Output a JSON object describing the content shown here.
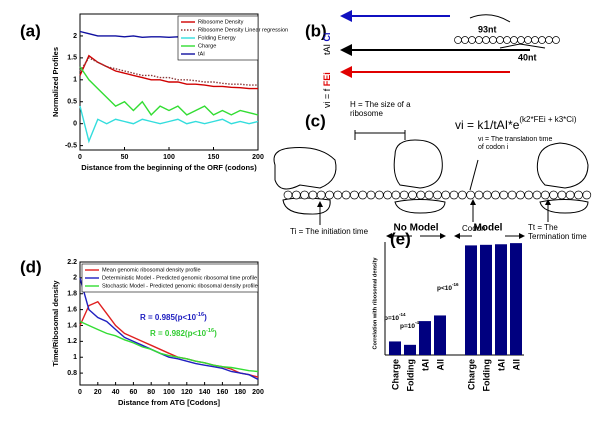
{
  "chart_data": [
    {
      "type": "line",
      "label": "(a)",
      "x_label": "Distance from the beginning of the ORF (codons)",
      "y_label": "Normalized Profiles",
      "x": [
        0,
        10,
        20,
        30,
        40,
        50,
        60,
        70,
        80,
        90,
        100,
        110,
        120,
        130,
        140,
        150,
        160,
        170,
        180,
        190,
        200
      ],
      "xlim": [
        0,
        200
      ],
      "xticks": [
        0,
        50,
        100,
        150,
        200
      ],
      "ylim": [
        -0.6,
        2.5
      ],
      "yticks": [
        -0.5,
        0,
        0.5,
        1,
        1.5,
        2
      ],
      "series": [
        {
          "name": "Ribosome Density",
          "color": "#d00000",
          "values": [
            1.1,
            1.55,
            1.4,
            1.3,
            1.2,
            1.15,
            1.1,
            1.05,
            1.0,
            1.0,
            0.95,
            0.95,
            0.9,
            0.9,
            0.88,
            0.85,
            0.85,
            0.83,
            0.82,
            0.8,
            0.8
          ]
        },
        {
          "name": "Ribosome Density Linear regression",
          "color": "#8b3a3a",
          "style": "dotted",
          "values": [
            1.2,
            1.5,
            1.4,
            1.3,
            1.25,
            1.2,
            1.15,
            1.1,
            1.1,
            1.05,
            1.05,
            1.0,
            1.0,
            0.98,
            0.95,
            0.95,
            0.92,
            0.9,
            0.9,
            0.88,
            0.88
          ]
        },
        {
          "name": "Folding Energy",
          "color": "#33dddd",
          "values": [
            0.4,
            -0.4,
            0.1,
            0.0,
            0.1,
            0.05,
            0.0,
            0.1,
            0.05,
            0.0,
            0.05,
            0.1,
            0.0,
            0.05,
            0.0,
            0.05,
            0.1,
            0.0,
            0.05,
            0.0,
            0.05
          ]
        },
        {
          "name": "Charge",
          "color": "#33dd33",
          "values": [
            1.3,
            1.0,
            0.8,
            0.6,
            0.4,
            0.5,
            0.3,
            0.5,
            0.2,
            0.4,
            0.3,
            0.4,
            0.2,
            0.3,
            0.4,
            0.2,
            0.3,
            0.2,
            0.3,
            0.25,
            0.2
          ]
        },
        {
          "name": "tAI",
          "color": "#1010a0",
          "values": [
            2.1,
            2.05,
            2.0,
            2.0,
            2.0,
            1.98,
            2.0,
            1.97,
            1.98,
            1.98,
            1.97,
            1.98,
            1.96,
            1.97,
            1.97,
            1.95,
            1.96,
            1.96,
            1.95,
            1.96,
            1.95
          ]
        }
      ]
    },
    {
      "type": "line",
      "label": "(d)",
      "x_label": "Distance from ATG [Codons]",
      "y_label": "Time/Ribosomal density",
      "x": [
        0,
        10,
        20,
        30,
        40,
        50,
        60,
        70,
        80,
        90,
        100,
        110,
        120,
        130,
        140,
        150,
        160,
        170,
        180,
        190,
        200
      ],
      "xlim": [
        0,
        200
      ],
      "xticks": [
        0,
        20,
        40,
        60,
        80,
        100,
        120,
        140,
        160,
        180,
        200
      ],
      "ylim": [
        0.65,
        2.2
      ],
      "yticks": [
        0.8,
        1,
        1.2,
        1.4,
        1.6,
        1.8,
        2,
        2.2
      ],
      "series": [
        {
          "name": "Mean genomic ribosomal density profile",
          "color": "#e02020",
          "values": [
            1.4,
            1.65,
            1.7,
            1.55,
            1.4,
            1.3,
            1.25,
            1.2,
            1.15,
            1.1,
            1.05,
            1.0,
            0.98,
            0.95,
            0.93,
            0.9,
            0.88,
            0.85,
            0.8,
            0.78,
            0.75
          ]
        },
        {
          "name": "Deterministic Model - Predicted genomic ribosomal time profile",
          "color": "#2020c0",
          "values": [
            2.0,
            1.6,
            1.5,
            1.45,
            1.35,
            1.25,
            1.2,
            1.15,
            1.1,
            1.05,
            1.0,
            0.98,
            0.95,
            0.92,
            0.9,
            0.88,
            0.86,
            0.82,
            0.8,
            0.78,
            0.72
          ]
        },
        {
          "name": "Stochastic Model - Predicted genomic ribosomal density profile",
          "color": "#33dd33",
          "values": [
            1.45,
            1.4,
            1.35,
            1.3,
            1.27,
            1.22,
            1.18,
            1.13,
            1.1,
            1.05,
            1.02,
            1.0,
            0.98,
            0.95,
            0.93,
            0.9,
            0.88,
            0.87,
            0.85,
            0.83,
            0.82
          ]
        }
      ],
      "annotations": [
        {
          "text": "R = 0.985(p<10",
          "exponent": "-16",
          "suffix": ")",
          "color": "#2020c0"
        },
        {
          "text": "R = 0.982(p<10",
          "exponent": "-16",
          "suffix": ")",
          "color": "#33cc33"
        }
      ]
    },
    {
      "type": "bar",
      "label": "(e)",
      "y_label": "Correlation with ribosomal density",
      "color": "#00007f",
      "categories": [
        "Charge",
        "Folding",
        "tAI",
        "All",
        "Charge",
        "Folding",
        "tAI",
        "All"
      ],
      "values": [
        0.12,
        0.09,
        0.3,
        0.35,
        0.97,
        0.975,
        0.98,
        0.99
      ],
      "ylim": [
        0,
        1
      ],
      "group_labels": [
        "No Model",
        "Model"
      ],
      "annotations": [
        {
          "text": "p=10",
          "exponent": "-14"
        },
        {
          "text": "p=10",
          "exponent": "-4"
        },
        {
          "text": "p<10",
          "exponent": "-16"
        }
      ]
    }
  ],
  "diagrams": {
    "b": {
      "label": "(b)",
      "left_labels": [
        {
          "text": "tAI",
          "highlight": "Ci"
        },
        {
          "text": "vi = f",
          "highlight": "FEi"
        }
      ],
      "distances": [
        "93nt",
        "40nt"
      ]
    },
    "c": {
      "label": "(c)",
      "ribosome_size": "H = The size of a ribosome",
      "equation": "vi = k1/tAI*e",
      "equation_exponent": "(k2*FEi + k3*Ci)",
      "translation_time": "vi = The translation time of codon i",
      "initiation": "Ti = The initiation time",
      "codon": "Codon",
      "termination": "Tt = The Termination time"
    }
  }
}
